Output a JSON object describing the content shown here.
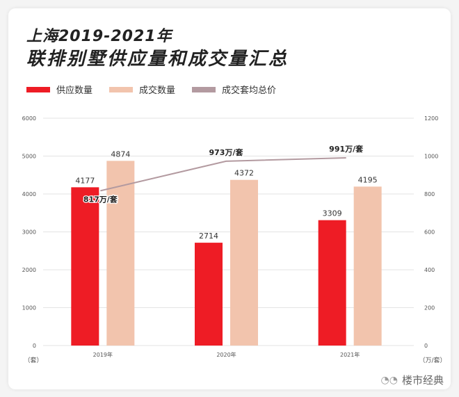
{
  "chart_data": {
    "type": "bar",
    "title": "上海2019-2021年",
    "subtitle": "联排别墅供应量和成交量汇总",
    "categories": [
      "2019年",
      "2020年",
      "2021年"
    ],
    "series": [
      {
        "name": "供应数量",
        "type": "bar",
        "axis": "left",
        "color": "#ee1c25",
        "values": [
          4177,
          2714,
          3309
        ],
        "labels": [
          "4177",
          "2714",
          "3309"
        ]
      },
      {
        "name": "成交数量",
        "type": "bar",
        "axis": "left",
        "color": "#f2c4ad",
        "values": [
          4874,
          4372,
          4195
        ],
        "labels": [
          "4874",
          "4372",
          "4195"
        ]
      },
      {
        "name": "成交套均总价",
        "type": "line",
        "axis": "right",
        "color": "#b39aa0",
        "values": [
          817,
          973,
          991
        ],
        "labels": [
          "817万/套",
          "973万/套",
          "991万/套"
        ]
      }
    ],
    "y_left": {
      "range": [
        0,
        6000
      ],
      "ticks": [
        "0",
        "1000",
        "2000",
        "3000",
        "4000",
        "5000",
        "6000"
      ],
      "unit": "（套）"
    },
    "y_right": {
      "range": [
        0,
        1200
      ],
      "ticks": [
        "0",
        "200",
        "400",
        "600",
        "800",
        "1000",
        "1200"
      ],
      "unit": "（万/套）"
    },
    "grid": true,
    "legend_position": "top-left"
  },
  "watermark": "楼市经典"
}
